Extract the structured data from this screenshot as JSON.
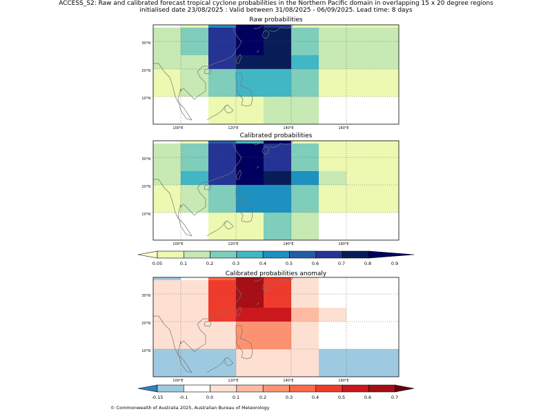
{
  "header": {
    "line1": "ACCESS_S2: Raw and calibrated forecast tropical cyclone probabilities in the Northern Pacific domain in overlapping 15 x 20 degree regions",
    "line2": "initialised date 23/08/2025 :  Valid between 31/08/2025 - 06/09/2025. Lead time: 8 days"
  },
  "footer": "© Commonwealth of Australia 2025, Australian Bureau of Meteorology",
  "colors": {
    "prob_scale": [
      "#ffffcc",
      "#edf8b1",
      "#c7e9b4",
      "#7fcdbb",
      "#41b6c4",
      "#1d91c0",
      "#225ea8",
      "#253494",
      "#081d58",
      "#000060"
    ],
    "anom_scale": [
      "#3182bd",
      "#9ecae1",
      "#ffffff",
      "#fee0d2",
      "#fcbba1",
      "#fc9272",
      "#fb6a4a",
      "#ef3b2c",
      "#cb181d",
      "#a50f15",
      "#67000d"
    ]
  },
  "chart_data": [
    {
      "type": "heatmap",
      "title": "Raw probabilities",
      "lat_ticks": [
        "30°N",
        "20°N",
        "10°N"
      ],
      "lon_ticks": [
        "100°E",
        "120°E",
        "140°E",
        "160°E"
      ],
      "cols": [
        "90-100E",
        "100-110E",
        "110-120E",
        "120-130E",
        "130-140E",
        "140-150E",
        "150-160E",
        "160-170E",
        "170-180E"
      ],
      "rows": [
        "35-40N",
        "30-35N",
        "25-30N",
        "20-25N",
        "15-20N",
        "10-15N",
        "5-10N",
        "0-5N"
      ],
      "values": [
        [
          null,
          0.08,
          0.45,
          0.85,
          0.65,
          0.08,
          0.08,
          0.08,
          0.08
        ],
        [
          0.15,
          0.25,
          0.65,
          0.85,
          0.75,
          0.25,
          0.15,
          0.15,
          0.15
        ],
        [
          0.15,
          0.25,
          0.65,
          0.85,
          0.75,
          0.25,
          0.15,
          0.15,
          0.15
        ],
        [
          0.15,
          0.15,
          0.65,
          0.75,
          0.75,
          0.35,
          0.15,
          0.15,
          0.15
        ],
        [
          0.08,
          0.15,
          0.25,
          0.35,
          0.35,
          0.25,
          0.08,
          0.08,
          0.08
        ],
        [
          0.08,
          0.15,
          0.25,
          0.35,
          0.35,
          0.25,
          0.08,
          0.08,
          0.08
        ],
        [
          null,
          null,
          0.08,
          0.08,
          0.15,
          0.15,
          null,
          null,
          null
        ],
        [
          null,
          null,
          0.08,
          0.08,
          0.15,
          0.15,
          null,
          null,
          null
        ]
      ]
    },
    {
      "type": "heatmap",
      "title": "Calibrated probabilities",
      "lat_ticks": [
        "30°N",
        "20°N",
        "10°N"
      ],
      "lon_ticks": [
        "100°E",
        "120°E",
        "140°E",
        "160°E"
      ],
      "cols": [
        "90-100E",
        "100-110E",
        "110-120E",
        "120-130E",
        "130-140E",
        "140-150E",
        "150-160E",
        "160-170E",
        "170-180E"
      ],
      "rows": [
        "35-40N",
        "30-35N",
        "25-30N",
        "20-25N",
        "15-20N",
        "10-15N",
        "5-10N",
        "0-5N"
      ],
      "values": [
        [
          null,
          0.08,
          0.55,
          0.35,
          0.95,
          0.08,
          0.08,
          0.08,
          0.08
        ],
        [
          0.15,
          0.25,
          0.65,
          0.95,
          0.65,
          0.25,
          0.08,
          0.08,
          0.08
        ],
        [
          0.15,
          0.25,
          0.65,
          0.95,
          0.65,
          0.25,
          0.08,
          0.08,
          0.08
        ],
        [
          0.15,
          0.35,
          0.65,
          0.85,
          0.75,
          0.45,
          0.15,
          0.08,
          0.08
        ],
        [
          0.08,
          0.15,
          0.25,
          0.45,
          0.45,
          0.25,
          0.08,
          0.08,
          0.08
        ],
        [
          0.08,
          0.15,
          0.25,
          0.45,
          0.45,
          0.25,
          0.08,
          0.08,
          0.08
        ],
        [
          null,
          null,
          0.08,
          0.08,
          0.25,
          0.15,
          null,
          null,
          null
        ],
        [
          null,
          null,
          0.08,
          0.08,
          0.25,
          0.15,
          null,
          null,
          null
        ]
      ]
    },
    {
      "type": "heatmap",
      "title": "Calibrated probabilities anomaly",
      "lat_ticks": [
        "30°N",
        "20°N",
        "10°N"
      ],
      "lon_ticks": [
        "100°E",
        "120°E",
        "140°E",
        "160°E"
      ],
      "cols": [
        "90-100E",
        "100-110E",
        "110-120E",
        "120-130E",
        "130-140E",
        "140-150E",
        "150-160E",
        "160-170E",
        "170-180E"
      ],
      "rows": [
        "35-40N",
        "30-35N",
        "25-30N",
        "20-25N",
        "15-20N",
        "10-15N",
        "5-10N",
        "0-5N"
      ],
      "values": [
        [
          -0.12,
          -0.08,
          0.35,
          0.65,
          0.45,
          0.02,
          -0.08,
          -0.08,
          -0.08
        ],
        [
          0.02,
          0.08,
          0.45,
          0.65,
          0.45,
          0.08,
          -0.08,
          -0.08,
          -0.08
        ],
        [
          0.02,
          0.08,
          0.45,
          0.65,
          0.45,
          0.08,
          -0.08,
          -0.08,
          -0.08
        ],
        [
          0.08,
          0.08,
          0.45,
          0.55,
          0.55,
          0.15,
          0.02,
          -0.08,
          -0.08
        ],
        [
          0.02,
          0.08,
          0.08,
          0.25,
          0.25,
          0.08,
          -0.08,
          -0.08,
          -0.08
        ],
        [
          0.02,
          0.02,
          0.08,
          0.25,
          0.25,
          0.08,
          -0.08,
          -0.08,
          -0.08
        ],
        [
          -0.12,
          -0.12,
          -0.12,
          0.02,
          0.08,
          0.02,
          -0.12,
          -0.12,
          -0.12
        ],
        [
          -0.12,
          -0.12,
          -0.12,
          0.02,
          0.08,
          0.02,
          -0.12,
          -0.12,
          -0.12
        ]
      ]
    }
  ],
  "colorbars": {
    "prob": [
      "0.05",
      "0.1",
      "0.2",
      "0.3",
      "0.4",
      "0.5",
      "0.6",
      "0.7",
      "0.8",
      "0.9"
    ],
    "anom": [
      "-0.15",
      "-0.1",
      "0.0",
      "0.1",
      "0.2",
      "0.3",
      "0.4",
      "0.5",
      "0.6",
      "0.7"
    ]
  }
}
